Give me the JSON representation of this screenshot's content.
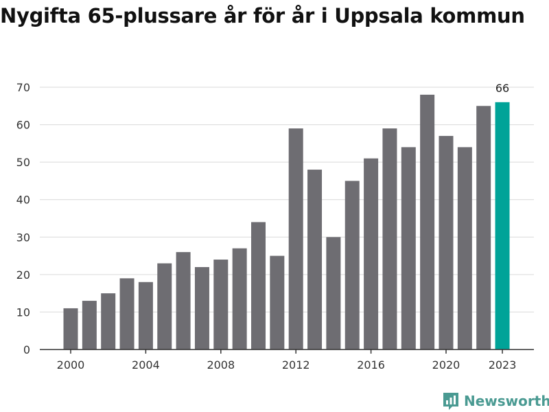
{
  "title": "Nygifta 65-plussare år för år i Uppsala kommun",
  "brand": {
    "name": "Newsworthy",
    "icon": "bar-chart-speech-bubble-icon",
    "color": "#4a9a92"
  },
  "colors": {
    "bar": "#6e6d72",
    "highlight": "#00a398",
    "grid": "#d9d9d9",
    "axis": "#333333"
  },
  "chart_data": {
    "type": "bar",
    "title": "Nygifta 65-plussare år för år i Uppsala kommun",
    "xlabel": "",
    "ylabel": "",
    "categories": [
      2000,
      2001,
      2002,
      2003,
      2004,
      2005,
      2006,
      2007,
      2008,
      2009,
      2010,
      2011,
      2012,
      2013,
      2014,
      2015,
      2016,
      2017,
      2018,
      2019,
      2020,
      2021,
      2022,
      2023
    ],
    "values": [
      11,
      13,
      15,
      19,
      18,
      23,
      26,
      22,
      24,
      27,
      34,
      25,
      59,
      48,
      30,
      45,
      51,
      59,
      54,
      68,
      57,
      54,
      65,
      66
    ],
    "highlight_category": 2023,
    "highlight_label": "66",
    "x_tick_labels": [
      "2000",
      "2004",
      "2008",
      "2012",
      "2016",
      "2020",
      "2023"
    ],
    "y_tick_labels": [
      "0",
      "10",
      "20",
      "30",
      "40",
      "50",
      "60",
      "70"
    ],
    "ylim": [
      0,
      70
    ],
    "grid": "horizontal"
  }
}
